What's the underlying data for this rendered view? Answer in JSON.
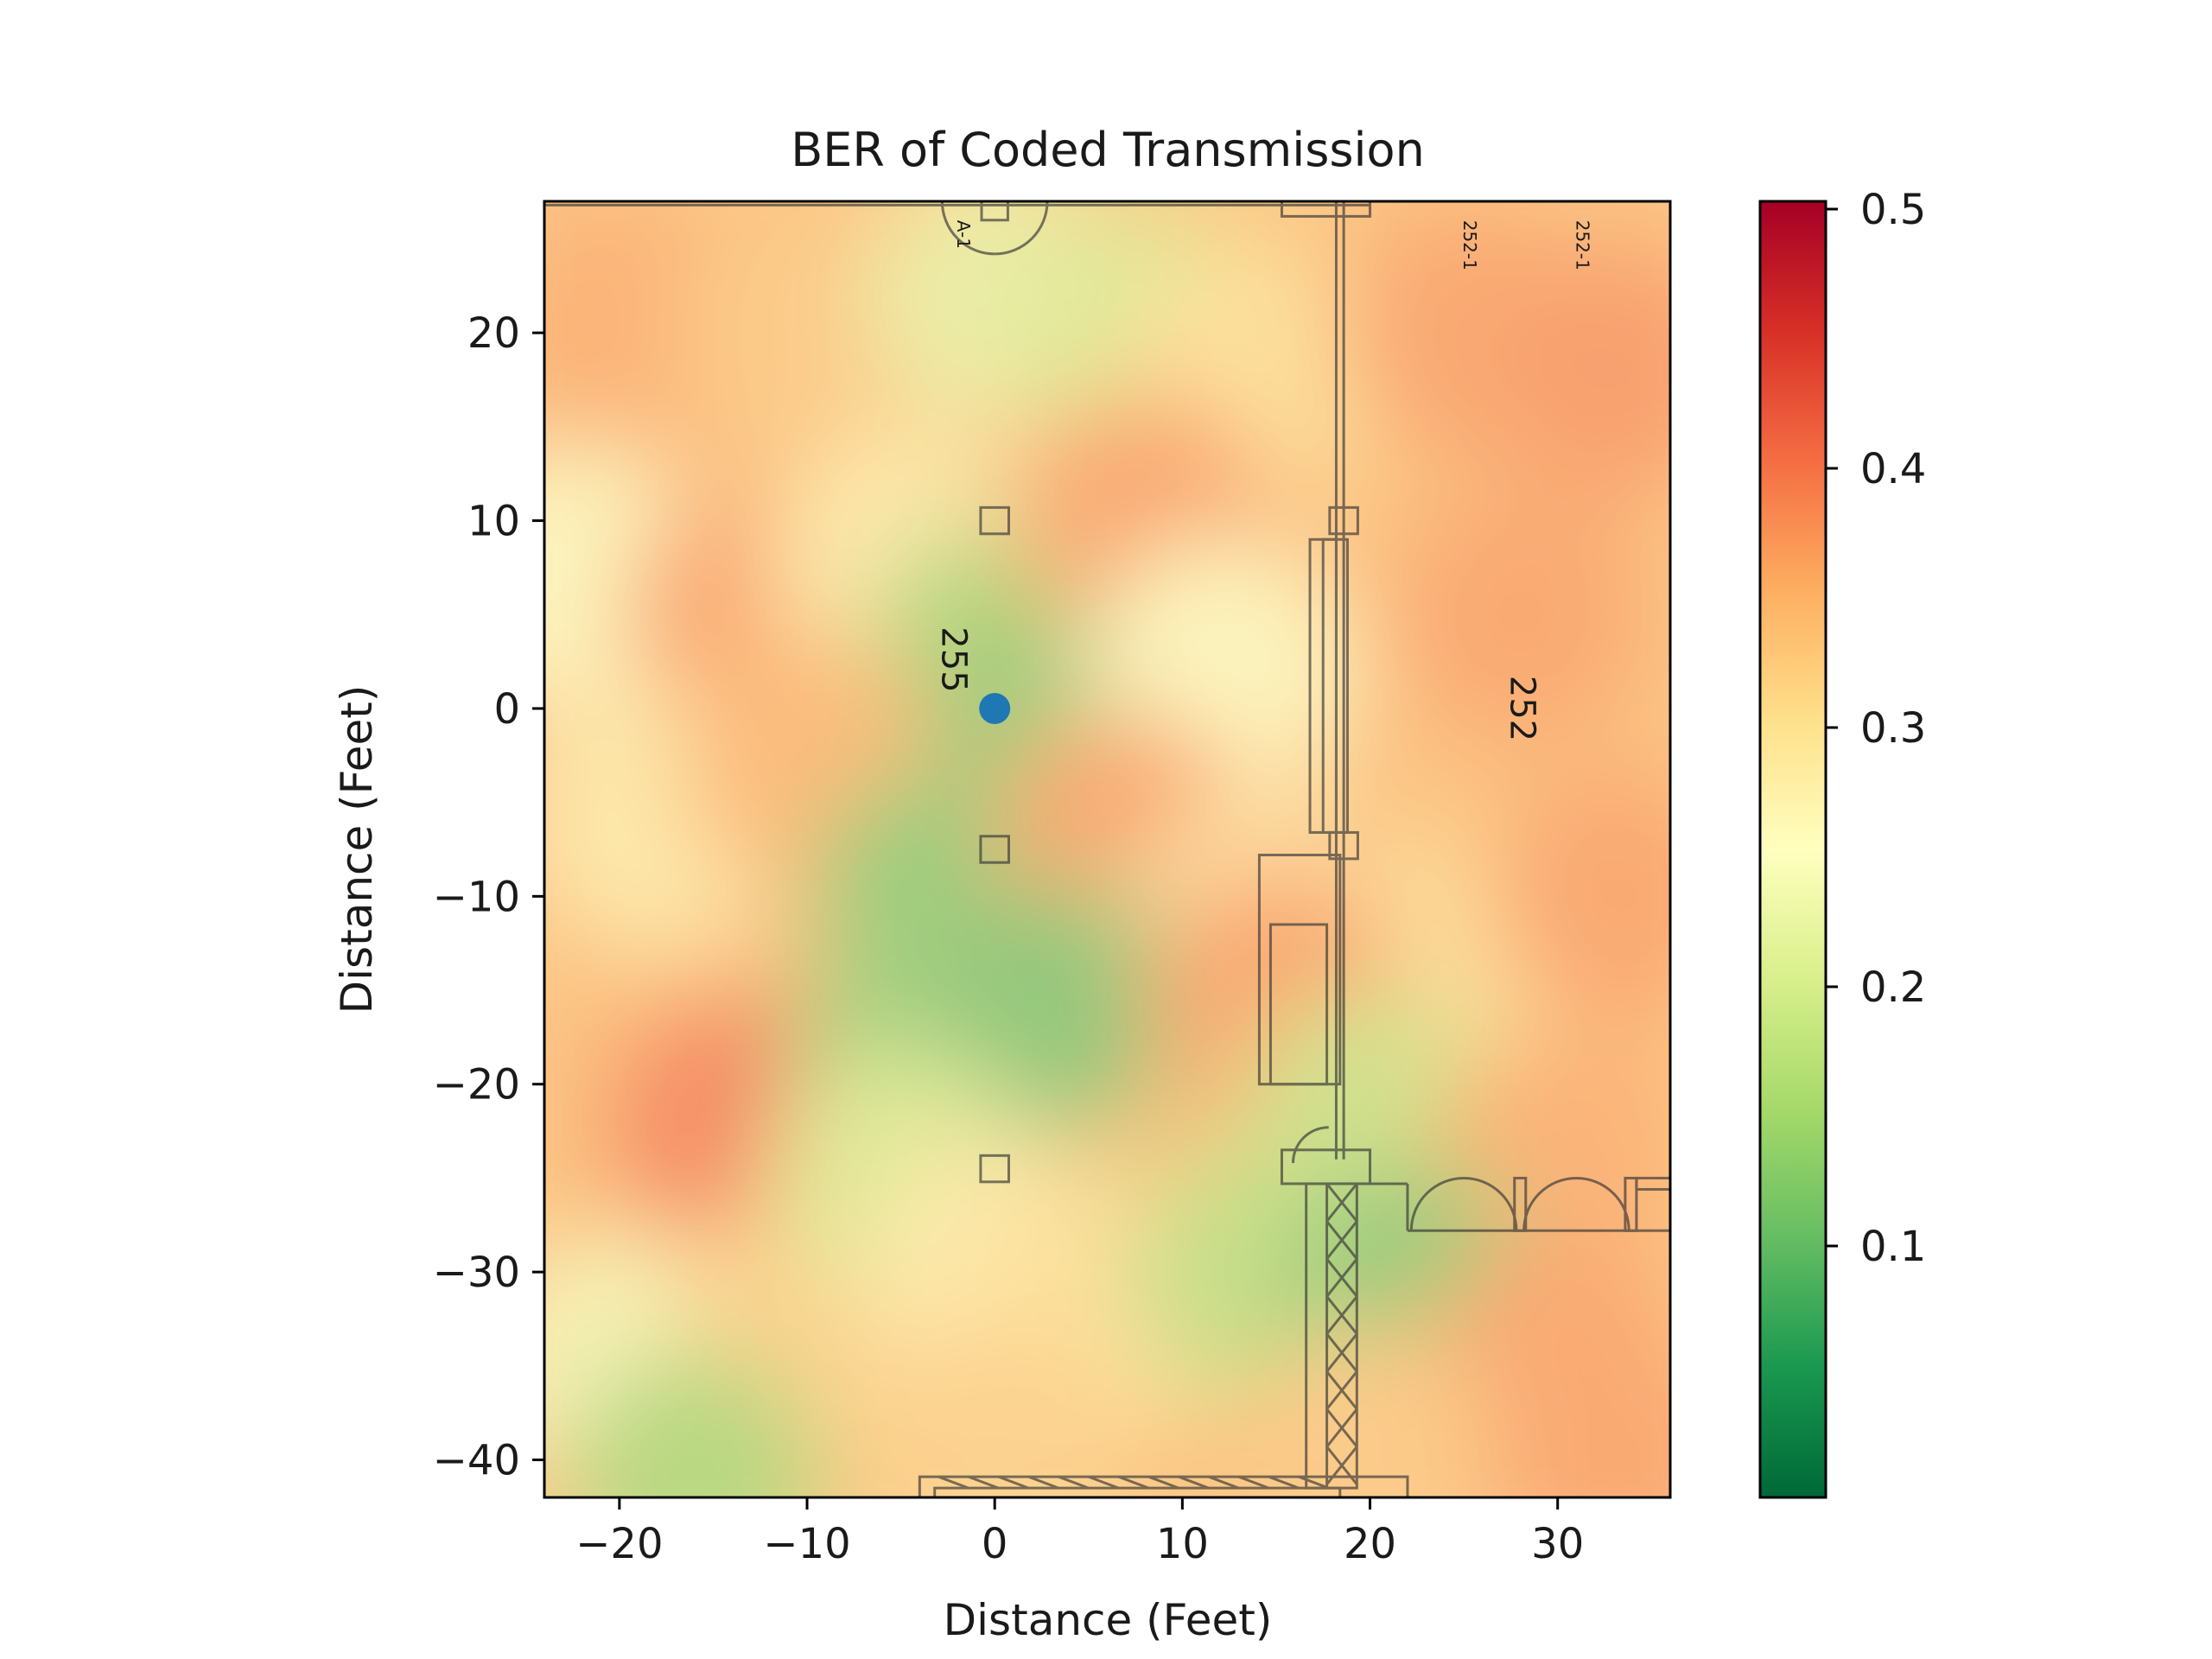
{
  "chart_data": {
    "type": "heatmap",
    "title": "BER of Coded Transmission",
    "xlabel": "Distance (Feet)",
    "ylabel": "Distance (Feet)",
    "xlim": [
      -24,
      36
    ],
    "ylim": [
      -42,
      27
    ],
    "x_ticks": [
      {
        "value": -20,
        "label": "−20"
      },
      {
        "value": -10,
        "label": "−10"
      },
      {
        "value": 0,
        "label": "0"
      },
      {
        "value": 10,
        "label": "10"
      },
      {
        "value": 20,
        "label": "20"
      },
      {
        "value": 30,
        "label": "30"
      }
    ],
    "y_ticks": [
      {
        "value": 20,
        "label": "20"
      },
      {
        "value": 10,
        "label": "10"
      },
      {
        "value": 0,
        "label": "0"
      },
      {
        "value": -10,
        "label": "−10"
      },
      {
        "value": -20,
        "label": "−20"
      },
      {
        "value": -30,
        "label": "−30"
      },
      {
        "value": -40,
        "label": "−40"
      }
    ],
    "colormap": "RdYlGn_r",
    "colormap_stops": [
      "#006837",
      "#1a9850",
      "#66bd63",
      "#a6d96a",
      "#d9ef8b",
      "#ffffbf",
      "#fee08b",
      "#fdae61",
      "#f46d43",
      "#d73027",
      "#a50026"
    ],
    "colorbar": {
      "range": [
        0.003,
        0.503
      ],
      "ticks": [
        {
          "value": 0.1,
          "label": "0.1"
        },
        {
          "value": 0.2,
          "label": "0.2"
        },
        {
          "value": 0.3,
          "label": "0.3"
        },
        {
          "value": 0.4,
          "label": "0.4"
        },
        {
          "value": 0.5,
          "label": "0.5"
        }
      ]
    },
    "grid": false,
    "transmitter": {
      "x": 0,
      "y": 0,
      "color": "#1f77b4"
    },
    "room_labels": [
      {
        "text": "255",
        "x": -2.8,
        "y": 2.6,
        "rotation": 90
      },
      {
        "text": "252",
        "x": 27.5,
        "y": 0,
        "rotation": 90
      },
      {
        "text": "A-1",
        "x": -2,
        "y": 26,
        "rotation": 90
      },
      {
        "text": "252-1",
        "x": 25,
        "y": 26,
        "rotation": 90
      },
      {
        "text": "252-1",
        "x": 31,
        "y": 26,
        "rotation": 90
      }
    ],
    "ber_samples": [
      {
        "x": -20,
        "y": 20,
        "ber": 0.36
      },
      {
        "x": -10,
        "y": 20,
        "ber": 0.33
      },
      {
        "x": 0,
        "y": 22,
        "ber": 0.22
      },
      {
        "x": 8,
        "y": 20,
        "ber": 0.2
      },
      {
        "x": 14,
        "y": 18,
        "ber": 0.3
      },
      {
        "x": 25,
        "y": 20,
        "ber": 0.37
      },
      {
        "x": 33,
        "y": 18,
        "ber": 0.38
      },
      {
        "x": -22,
        "y": 7,
        "ber": 0.25
      },
      {
        "x": -13,
        "y": 5,
        "ber": 0.37
      },
      {
        "x": -5,
        "y": 8,
        "ber": 0.28
      },
      {
        "x": 0,
        "y": 3,
        "ber": 0.15
      },
      {
        "x": 2,
        "y": -2,
        "ber": 0.12
      },
      {
        "x": 8,
        "y": 10,
        "ber": 0.37
      },
      {
        "x": 12,
        "y": 2,
        "ber": 0.25
      },
      {
        "x": 28,
        "y": 5,
        "ber": 0.37
      },
      {
        "x": -18,
        "y": -6,
        "ber": 0.28
      },
      {
        "x": -10,
        "y": -3,
        "ber": 0.35
      },
      {
        "x": -3,
        "y": -10,
        "ber": 0.12
      },
      {
        "x": 7,
        "y": -7,
        "ber": 0.37
      },
      {
        "x": 14,
        "y": -12,
        "ber": 0.28
      },
      {
        "x": 24,
        "y": -14,
        "ber": 0.3
      },
      {
        "x": 33,
        "y": -10,
        "ber": 0.37
      },
      {
        "x": -14,
        "y": -22,
        "ber": 0.4
      },
      {
        "x": -4,
        "y": -18,
        "ber": 0.13
      },
      {
        "x": 3,
        "y": -16,
        "ber": 0.11
      },
      {
        "x": 15,
        "y": -15,
        "ber": 0.37
      },
      {
        "x": 20,
        "y": -22,
        "ber": 0.18
      },
      {
        "x": 30,
        "y": -24,
        "ber": 0.36
      },
      {
        "x": -20,
        "y": -35,
        "ber": 0.24
      },
      {
        "x": -10,
        "y": -33,
        "ber": 0.32
      },
      {
        "x": -5,
        "y": -25,
        "ber": 0.2
      },
      {
        "x": 0,
        "y": -30,
        "ber": 0.28
      },
      {
        "x": 6,
        "y": -32,
        "ber": 0.3
      },
      {
        "x": 14,
        "y": -30,
        "ber": 0.17
      },
      {
        "x": 22,
        "y": -31,
        "ber": 0.12
      },
      {
        "x": 30,
        "y": -35,
        "ber": 0.37
      },
      {
        "x": -16,
        "y": -41,
        "ber": 0.15
      },
      {
        "x": 0,
        "y": -40,
        "ber": 0.32
      },
      {
        "x": 20,
        "y": -40,
        "ber": 0.33
      },
      {
        "x": 33,
        "y": -40,
        "ber": 0.37
      }
    ]
  }
}
